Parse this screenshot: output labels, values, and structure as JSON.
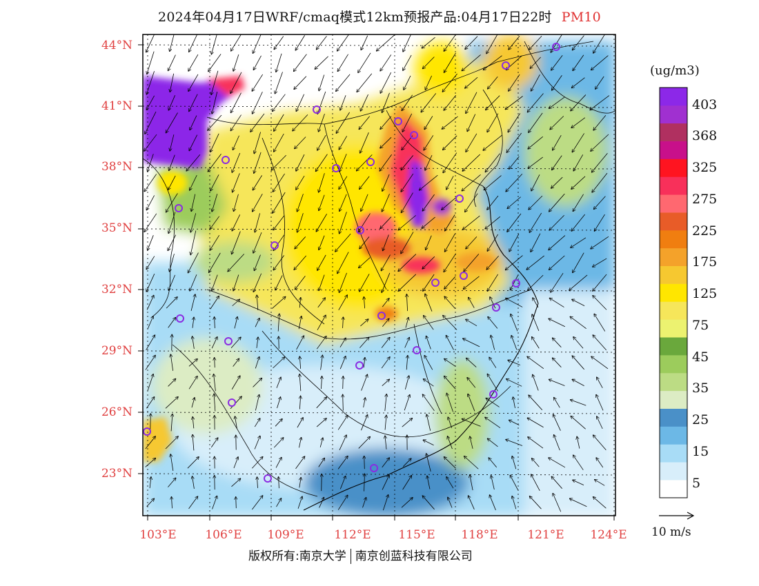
{
  "title": {
    "main": "2024年04月17日WRF/cmaq模式12km预报产品:04月17日22时",
    "pollutant": "PM10"
  },
  "axes": {
    "lat_labels": [
      "44°N",
      "41°N",
      "38°N",
      "35°N",
      "32°N",
      "29°N",
      "26°N",
      "23°N"
    ],
    "lon_labels": [
      "103°E",
      "106°E",
      "109°E",
      "112°E",
      "115°E",
      "118°E",
      "121°E",
      "124°E"
    ]
  },
  "colorbar": {
    "unit": "(ug/m3)",
    "labels": [
      "403",
      "368",
      "325",
      "275",
      "225",
      "175",
      "125",
      "75",
      "45",
      "35",
      "25",
      "15",
      "5"
    ],
    "colors": [
      "#ffffff",
      "#d8eefa",
      "#a8dcf6",
      "#6cb8e6",
      "#4a90c8",
      "#dcecc4",
      "#bcdc84",
      "#9ccc5c",
      "#6aa83c",
      "#ecf270",
      "#f6e65a",
      "#ffe600",
      "#f6c830",
      "#f4a22a",
      "#f07e10",
      "#e85c28",
      "#ff6870",
      "#f8305a",
      "#ff1420",
      "#c8108a",
      "#b03060",
      "#a030d0",
      "#8c28e8"
    ]
  },
  "wind_scale": {
    "label": "10 m/s"
  },
  "footer": {
    "copyright": "版权所有:南京大学",
    "company": "南京创蓝科技有限公司"
  },
  "map_colors": {
    "border": "#000000",
    "grid": "#000000",
    "site_circle": "#8a2be2"
  }
}
